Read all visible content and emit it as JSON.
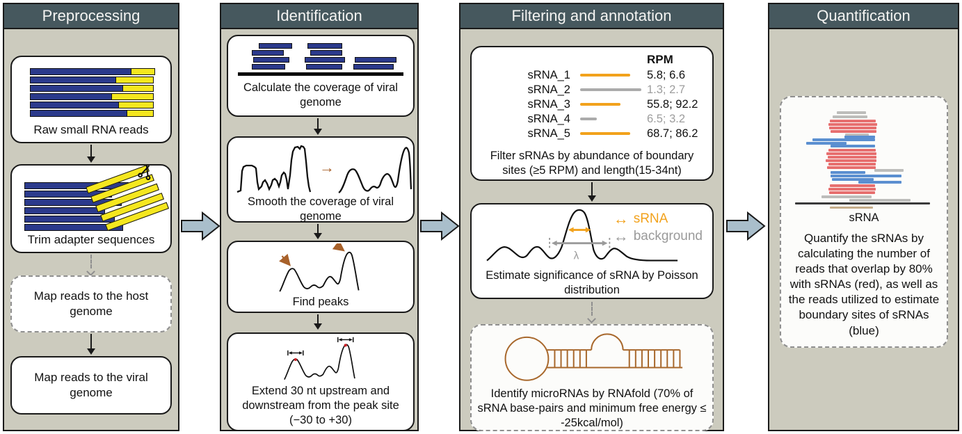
{
  "colors": {
    "header_bg": "#46585E",
    "column_bg": "#CCCBBE",
    "arrow_fill": "#A9BECB",
    "navy": "#2B3A8C",
    "yellow": "#F5E71F",
    "orange": "#F2A21C",
    "gray_line": "#ABABAB",
    "brown": "#A8612A",
    "red": "#E76F6F",
    "blue": "#5B8FD0",
    "gray_read": "#BDBDBB",
    "dark": "#3A3A3A",
    "tan": "#C7AE8B",
    "red_dot": "#CC2127",
    "hairpin": "#A8682C"
  },
  "icons": {
    "double_arrow": "↔",
    "smooth_arrow": "→"
  },
  "preprocessing": {
    "title": "Preprocessing",
    "raw_reads_label": "Raw small RNA reads",
    "raw_read_bars": [
      [
        146,
        34
      ],
      [
        124,
        54
      ],
      [
        134,
        44
      ],
      [
        118,
        60
      ],
      [
        128,
        50
      ],
      [
        140,
        38
      ]
    ],
    "trim_label": "Trim adapter sequences",
    "trim_blue_bars": [
      150,
      126,
      140,
      116,
      130,
      142
    ],
    "map_host_label": "Map reads to the host genome",
    "map_viral_label": "Map reads to the viral genome"
  },
  "identification": {
    "title": "Identification",
    "coverage_label": "Calculate the coverage of viral genome",
    "coverage_reads": [
      [
        30,
        0,
        48
      ],
      [
        20,
        10,
        46
      ],
      [
        22,
        20,
        52
      ],
      [
        20,
        30,
        48
      ],
      [
        100,
        0,
        50
      ],
      [
        104,
        10,
        46
      ],
      [
        96,
        20,
        58
      ],
      [
        98,
        30,
        52
      ],
      [
        168,
        20,
        60
      ],
      [
        166,
        30,
        58
      ]
    ],
    "smooth_label": "Smooth the coverage of viral genome",
    "find_peaks_label": "Find peaks",
    "extend_label": "Extend 30 nt upstream and downstream from the peak site (−30 to +30)"
  },
  "filtering": {
    "title": "Filtering and annotation",
    "rpm_header": "RPM",
    "srna_rows": [
      {
        "name": "sRNA_1",
        "rpm": "5.8; 6.6",
        "len": 72,
        "kept": true
      },
      {
        "name": "sRNA_2",
        "rpm": "1.3; 2.7",
        "len": 88,
        "kept": false
      },
      {
        "name": "sRNA_3",
        "rpm": "55.8; 92.2",
        "len": 58,
        "kept": true
      },
      {
        "name": "sRNA_4",
        "rpm": "6.5; 3.2",
        "len": 24,
        "kept": false
      },
      {
        "name": "sRNA_5",
        "rpm": "68.7; 86.2",
        "len": 72,
        "kept": true
      }
    ],
    "filter_label": "Filter sRNAs by abundance of boundary sites (≥5 RPM) and length(15-34nt)",
    "legend": {
      "srna": "sRNA",
      "background": "background"
    },
    "lambda": "λ",
    "poisson_label": "Estimate significance of sRNA by Poisson distribution",
    "rnafold_label": "Identify microRNAs by RNAfold (70% of sRNA base-pairs and minimum free energy ≤ -25kcal/mol)"
  },
  "quantification": {
    "title": "Quantification",
    "srna_label": "sRNA",
    "description": "Quantify the sRNAs by calculating the number of reads that overlap by 80% with sRNAs (red), as well as the reads utilized to estimate boundary sites of sRNAs (blue)",
    "pileup": [
      [
        "g",
        62,
        2,
        42
      ],
      [
        "g",
        56,
        8,
        50
      ],
      [
        "r",
        52,
        14,
        66
      ],
      [
        "r",
        50,
        19,
        70
      ],
      [
        "r",
        51,
        24,
        68
      ],
      [
        "r",
        53,
        29,
        66
      ],
      [
        "g",
        74,
        34,
        34
      ],
      [
        "b",
        73,
        37,
        44
      ],
      [
        "b",
        27,
        41,
        90
      ],
      [
        "b",
        18,
        46,
        58
      ],
      [
        "b",
        53,
        50,
        64
      ],
      [
        "r",
        50,
        56,
        68
      ],
      [
        "r",
        47,
        61,
        72
      ],
      [
        "r",
        49,
        66,
        70
      ],
      [
        "r",
        46,
        71,
        73
      ],
      [
        "r",
        50,
        76,
        68
      ],
      [
        "r",
        48,
        81,
        70
      ],
      [
        "g",
        116,
        85,
        42
      ],
      [
        "b",
        53,
        88,
        50
      ],
      [
        "b",
        53,
        93,
        102
      ],
      [
        "b",
        55,
        98,
        60
      ],
      [
        "b",
        93,
        102,
        62
      ],
      [
        "r",
        52,
        107,
        65
      ],
      [
        "r",
        50,
        112,
        68
      ],
      [
        "r",
        51,
        117,
        66
      ],
      [
        "g",
        40,
        123,
        72
      ],
      [
        "g",
        80,
        128,
        88
      ],
      [
        "d",
        2,
        133,
        194,
        2.5
      ],
      [
        "t",
        52,
        139,
        62,
        3
      ]
    ]
  }
}
